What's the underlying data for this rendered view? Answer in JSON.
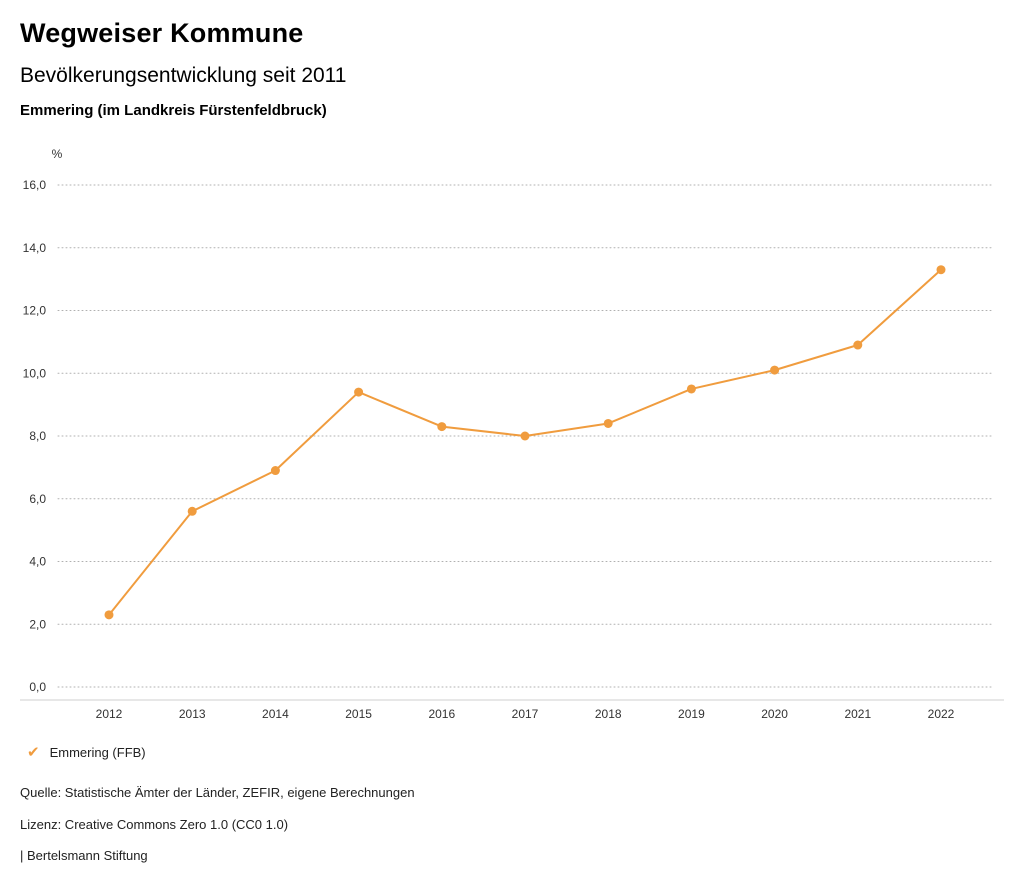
{
  "header": {
    "title": "Wegweiser Kommune",
    "subtitle": "Bevölkerungsentwicklung seit 2011",
    "location": "Emmering (im Landkreis Fürstenfeldbruck)"
  },
  "chart_data": {
    "type": "line",
    "title": "Bevölkerungsentwicklung seit 2011",
    "unit_label": "%",
    "x": [
      2012,
      2013,
      2014,
      2015,
      2016,
      2017,
      2018,
      2019,
      2020,
      2021,
      2022
    ],
    "series": [
      {
        "name": "Emmering (FFB)",
        "color": "#F09C3E",
        "values": [
          2.3,
          5.6,
          6.9,
          9.4,
          8.3,
          8.0,
          8.4,
          9.5,
          10.1,
          10.9,
          13.3
        ]
      }
    ],
    "ylim": [
      0,
      16
    ],
    "ytick_step": 2,
    "ytick_labels": [
      "0,0",
      "2,0",
      "4,0",
      "6,0",
      "8,0",
      "10,0",
      "12,0",
      "14,0",
      "16,0"
    ],
    "grid": "dotted-horizontal",
    "legend_position": "bottom-left"
  },
  "legend": {
    "items": [
      {
        "label": "Emmering (FFB)",
        "color": "#F09C3E",
        "check_icon": "✔"
      }
    ]
  },
  "footer": {
    "source": "Quelle: Statistische Ämter der Länder, ZEFIR, eigene Berechnungen",
    "license": "Lizenz: Creative Commons Zero 1.0 (CC0 1.0)",
    "attribution": "| Bertelsmann Stiftung"
  }
}
